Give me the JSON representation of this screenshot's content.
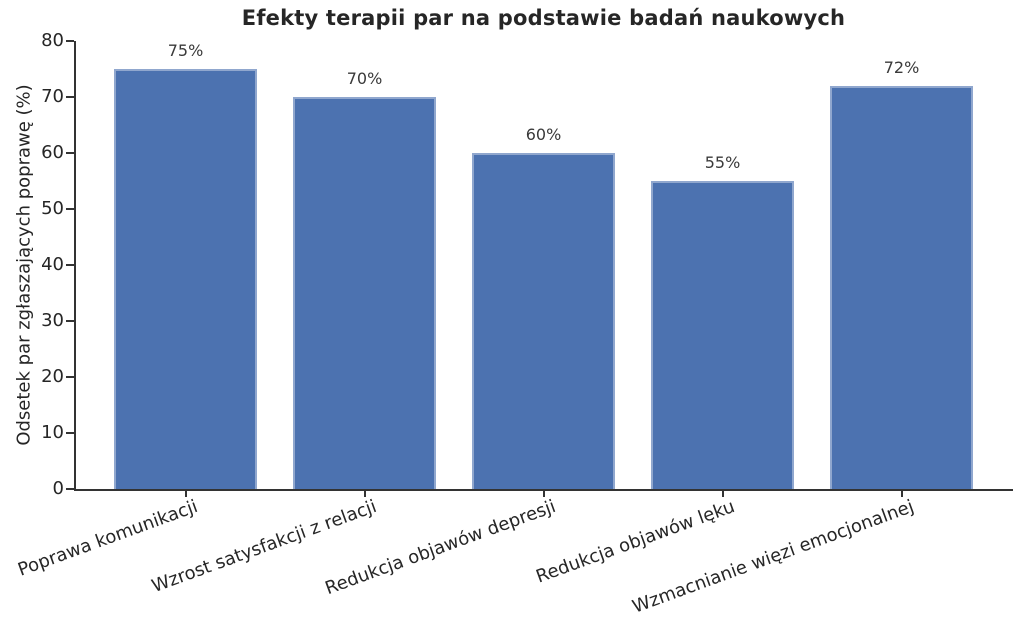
{
  "chart_data": {
    "type": "bar",
    "title": "Efekty terapii par na podstawie badań naukowych",
    "ylabel": "Odsetek par zgłaszających poprawę (%)",
    "xlabel": "",
    "categories": [
      "Poprawa komunikacji",
      "Wzrost satysfakcji z relacji",
      "Redukcja objawów depresji",
      "Redukcja objawów lęku",
      "Wzmacnianie więzi emocjonalnej"
    ],
    "values": [
      75,
      70,
      60,
      55,
      72
    ],
    "value_labels": [
      "75%",
      "70%",
      "60%",
      "55%",
      "72%"
    ],
    "ylim": [
      0,
      80
    ],
    "yticks": [
      0,
      10,
      20,
      30,
      40,
      50,
      60,
      70,
      80
    ],
    "x_tick_rotation_deg": 20,
    "grid": false,
    "legend": null,
    "bar_color": "#4C72B0",
    "axis_color": "#333333",
    "text_color": "#262626",
    "background_color": "#ffffff"
  }
}
